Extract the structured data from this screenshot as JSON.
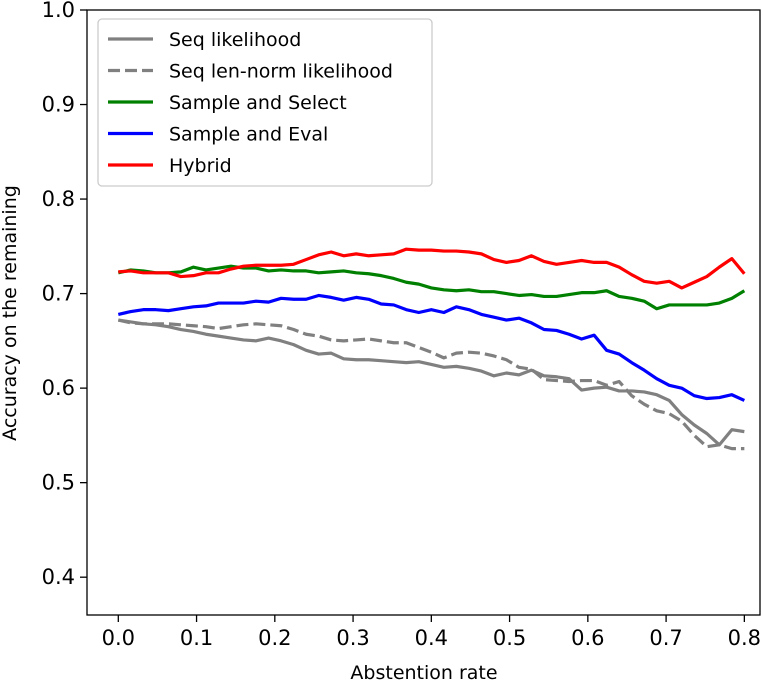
{
  "chart_data": {
    "type": "line",
    "title": "",
    "xlabel": "Abstention rate",
    "ylabel": "Accuracy on the remaining",
    "xlim": [
      -0.04,
      0.82
    ],
    "ylim": [
      0.36,
      1.0
    ],
    "xticks": [
      0.0,
      0.1,
      0.2,
      0.3,
      0.4,
      0.5,
      0.6,
      0.7,
      0.8
    ],
    "xtick_labels": [
      "0.0",
      "0.1",
      "0.2",
      "0.3",
      "0.4",
      "0.5",
      "0.6",
      "0.7",
      "0.8"
    ],
    "yticks": [
      0.4,
      0.5,
      0.6,
      0.7,
      0.8,
      0.9,
      1.0
    ],
    "ytick_labels": [
      "0.4",
      "0.5",
      "0.6",
      "0.7",
      "0.8",
      "0.9",
      "1.0"
    ],
    "grid": false,
    "legend_position": "top-left",
    "x": [
      0.0,
      0.016,
      0.032,
      0.048,
      0.064,
      0.08,
      0.096,
      0.112,
      0.128,
      0.144,
      0.16,
      0.176,
      0.192,
      0.208,
      0.224,
      0.24,
      0.256,
      0.272,
      0.288,
      0.304,
      0.32,
      0.336,
      0.352,
      0.368,
      0.384,
      0.4,
      0.416,
      0.432,
      0.448,
      0.464,
      0.48,
      0.496,
      0.512,
      0.528,
      0.544,
      0.56,
      0.576,
      0.592,
      0.608,
      0.624,
      0.64,
      0.656,
      0.672,
      0.688,
      0.704,
      0.72,
      0.736,
      0.752,
      0.768,
      0.784,
      0.8
    ],
    "series": [
      {
        "name": "Seq likelihood",
        "color": "#808080",
        "dash": "solid",
        "values": [
          0.672,
          0.67,
          0.668,
          0.667,
          0.665,
          0.662,
          0.66,
          0.657,
          0.655,
          0.653,
          0.651,
          0.65,
          0.653,
          0.65,
          0.646,
          0.64,
          0.636,
          0.637,
          0.631,
          0.63,
          0.63,
          0.629,
          0.628,
          0.627,
          0.628,
          0.625,
          0.622,
          0.623,
          0.621,
          0.618,
          0.613,
          0.616,
          0.614,
          0.619,
          0.613,
          0.612,
          0.61,
          0.598,
          0.6,
          0.601,
          0.597,
          0.597,
          0.596,
          0.593,
          0.587,
          0.572,
          0.561,
          0.552,
          0.54,
          0.556,
          0.554
        ]
      },
      {
        "name": "Seq len-norm likelihood",
        "color": "#808080",
        "dash": "dashed",
        "values": [
          0.672,
          0.669,
          0.668,
          0.668,
          0.668,
          0.667,
          0.666,
          0.665,
          0.663,
          0.665,
          0.667,
          0.668,
          0.667,
          0.666,
          0.662,
          0.657,
          0.655,
          0.651,
          0.65,
          0.651,
          0.652,
          0.65,
          0.648,
          0.648,
          0.643,
          0.638,
          0.632,
          0.637,
          0.638,
          0.637,
          0.634,
          0.63,
          0.622,
          0.62,
          0.609,
          0.608,
          0.607,
          0.608,
          0.608,
          0.603,
          0.607,
          0.592,
          0.583,
          0.576,
          0.573,
          0.565,
          0.55,
          0.538,
          0.54,
          0.536,
          0.536
        ]
      },
      {
        "name": "Sample and Select",
        "color": "#008000",
        "dash": "solid",
        "values": [
          0.722,
          0.725,
          0.724,
          0.722,
          0.722,
          0.723,
          0.728,
          0.725,
          0.727,
          0.729,
          0.727,
          0.727,
          0.724,
          0.725,
          0.724,
          0.724,
          0.722,
          0.723,
          0.724,
          0.722,
          0.721,
          0.719,
          0.716,
          0.712,
          0.71,
          0.706,
          0.704,
          0.703,
          0.704,
          0.702,
          0.702,
          0.7,
          0.698,
          0.699,
          0.697,
          0.697,
          0.699,
          0.701,
          0.701,
          0.703,
          0.697,
          0.695,
          0.692,
          0.684,
          0.688,
          0.688,
          0.688,
          0.688,
          0.69,
          0.695,
          0.703
        ]
      },
      {
        "name": "Sample and Eval",
        "color": "#0000ff",
        "dash": "solid",
        "values": [
          0.678,
          0.681,
          0.683,
          0.683,
          0.682,
          0.684,
          0.686,
          0.687,
          0.69,
          0.69,
          0.69,
          0.692,
          0.691,
          0.695,
          0.694,
          0.694,
          0.698,
          0.696,
          0.693,
          0.696,
          0.694,
          0.689,
          0.688,
          0.683,
          0.68,
          0.683,
          0.68,
          0.686,
          0.683,
          0.678,
          0.675,
          0.672,
          0.674,
          0.669,
          0.662,
          0.661,
          0.657,
          0.652,
          0.656,
          0.64,
          0.636,
          0.627,
          0.619,
          0.61,
          0.603,
          0.6,
          0.592,
          0.589,
          0.59,
          0.593,
          0.587
        ]
      },
      {
        "name": "Hybrid",
        "color": "#ff0000",
        "dash": "solid",
        "values": [
          0.723,
          0.724,
          0.722,
          0.722,
          0.722,
          0.718,
          0.719,
          0.722,
          0.722,
          0.726,
          0.729,
          0.73,
          0.73,
          0.73,
          0.731,
          0.736,
          0.741,
          0.744,
          0.74,
          0.742,
          0.74,
          0.741,
          0.742,
          0.747,
          0.746,
          0.746,
          0.745,
          0.745,
          0.744,
          0.742,
          0.736,
          0.733,
          0.735,
          0.74,
          0.734,
          0.731,
          0.733,
          0.735,
          0.733,
          0.733,
          0.728,
          0.72,
          0.713,
          0.711,
          0.713,
          0.706,
          0.712,
          0.718,
          0.728,
          0.737,
          0.721
        ]
      }
    ]
  }
}
